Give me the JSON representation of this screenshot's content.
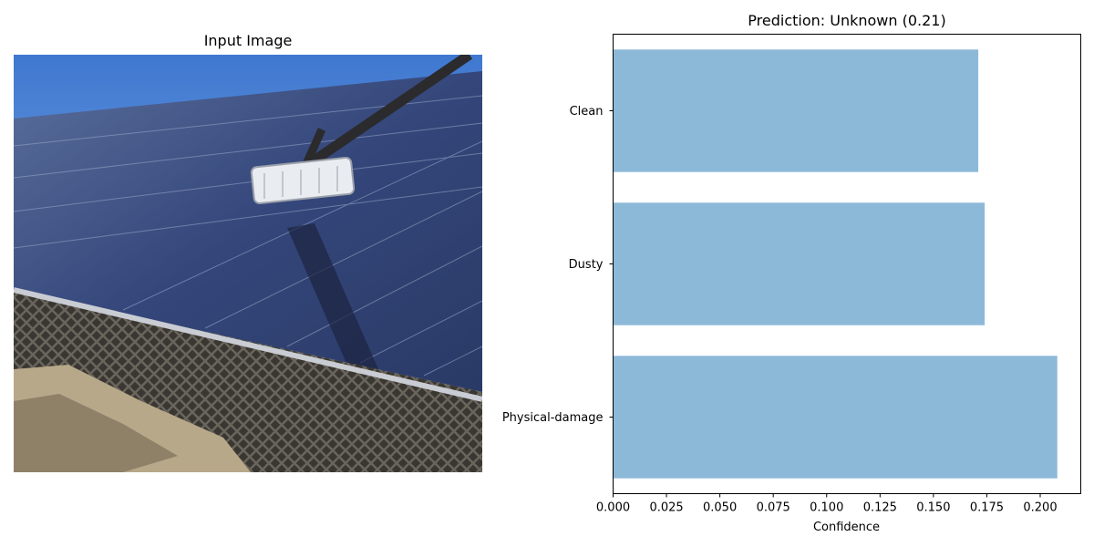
{
  "image_panel": {
    "title": "Input Image",
    "subject": "solar panel array being cleaned by a robotic brush arm"
  },
  "colors": {
    "bar": "#8db9d9",
    "axis": "#000000",
    "sky": "#4f86d6",
    "panel": "#2d3b63"
  },
  "chart_data": {
    "type": "bar",
    "orientation": "horizontal",
    "title": "Prediction: Unknown (0.21)",
    "xlabel": "Confidence",
    "ylabel": "",
    "categories": [
      "Clean",
      "Dusty",
      "Physical-damage"
    ],
    "values": [
      0.171,
      0.174,
      0.208
    ],
    "xlim": [
      0,
      0.219
    ],
    "xticks": [
      0.0,
      0.025,
      0.05,
      0.075,
      0.1,
      0.125,
      0.15,
      0.175,
      0.2
    ],
    "xtick_labels": [
      "0.000",
      "0.025",
      "0.050",
      "0.075",
      "0.100",
      "0.125",
      "0.150",
      "0.175",
      "0.200"
    ],
    "grid": false
  }
}
